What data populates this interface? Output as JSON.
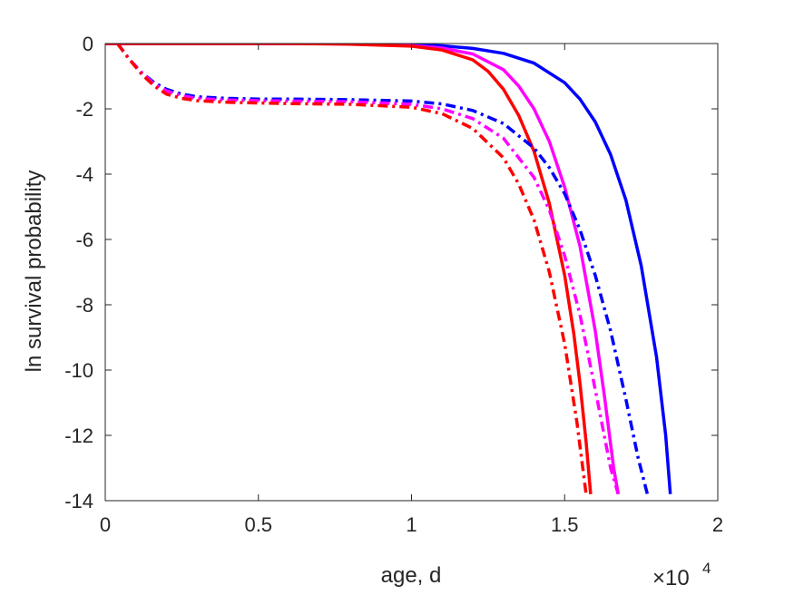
{
  "chart_data": {
    "type": "line",
    "title": "",
    "xlabel": "age, d",
    "ylabel": "ln survival probability",
    "x_multiplier": {
      "base": "×10",
      "exponent": "4"
    },
    "xlim": [
      0,
      2
    ],
    "ylim": [
      -14,
      0
    ],
    "xticks": [
      "0",
      "0.5",
      "1",
      "1.5",
      "2"
    ],
    "yticks": [
      "0",
      "-2",
      "-4",
      "-6",
      "-8",
      "-10",
      "-12",
      "-14"
    ],
    "grid": false,
    "legend": "none",
    "series": [
      {
        "color": "#0000ff",
        "style": "solid",
        "x": [
          0,
          0.2,
          0.4,
          0.6,
          0.8,
          1.0,
          1.1,
          1.2,
          1.3,
          1.4,
          1.5,
          1.55,
          1.6,
          1.65,
          1.7,
          1.75,
          1.8,
          1.83,
          1.845
        ],
        "y": [
          0,
          0,
          0,
          0,
          -0.01,
          -0.04,
          -0.07,
          -0.15,
          -0.3,
          -0.6,
          -1.2,
          -1.7,
          -2.4,
          -3.4,
          -4.8,
          -6.8,
          -9.6,
          -12.0,
          -13.8
        ]
      },
      {
        "color": "#ff00ff",
        "style": "solid",
        "x": [
          0,
          0.2,
          0.4,
          0.6,
          0.8,
          1.0,
          1.1,
          1.2,
          1.3,
          1.35,
          1.4,
          1.45,
          1.5,
          1.55,
          1.6,
          1.63,
          1.66,
          1.675
        ],
        "y": [
          0,
          0,
          0,
          0,
          -0.01,
          -0.06,
          -0.14,
          -0.32,
          -0.8,
          -1.3,
          -2.0,
          -3.0,
          -4.4,
          -6.2,
          -8.8,
          -10.8,
          -13.0,
          -13.8
        ]
      },
      {
        "color": "#ff0000",
        "style": "solid",
        "x": [
          0,
          0.2,
          0.4,
          0.6,
          0.8,
          1.0,
          1.1,
          1.2,
          1.25,
          1.3,
          1.35,
          1.4,
          1.45,
          1.5,
          1.53,
          1.55,
          1.57,
          1.585
        ],
        "y": [
          0,
          0,
          0,
          0,
          -0.02,
          -0.08,
          -0.2,
          -0.5,
          -0.85,
          -1.4,
          -2.2,
          -3.3,
          -4.9,
          -7.1,
          -8.9,
          -10.4,
          -12.2,
          -13.8
        ]
      },
      {
        "color": "#0000ff",
        "style": "dashdot",
        "x": [
          0.04,
          0.08,
          0.12,
          0.16,
          0.2,
          0.25,
          0.3,
          0.4,
          0.5,
          0.6,
          0.8,
          1.0,
          1.1,
          1.2,
          1.3,
          1.4,
          1.45,
          1.5,
          1.55,
          1.6,
          1.65,
          1.7,
          1.74,
          1.77
        ],
        "y": [
          0,
          -0.5,
          -0.9,
          -1.2,
          -1.4,
          -1.55,
          -1.63,
          -1.68,
          -1.7,
          -1.7,
          -1.72,
          -1.76,
          -1.85,
          -2.05,
          -2.45,
          -3.2,
          -3.8,
          -4.6,
          -5.7,
          -7.1,
          -8.8,
          -10.9,
          -12.7,
          -13.8
        ]
      },
      {
        "color": "#ff00ff",
        "style": "dashdot",
        "x": [
          0.04,
          0.08,
          0.12,
          0.16,
          0.2,
          0.25,
          0.3,
          0.4,
          0.5,
          0.6,
          0.8,
          1.0,
          1.1,
          1.2,
          1.3,
          1.4,
          1.45,
          1.5,
          1.55,
          1.6,
          1.65,
          1.675
        ],
        "y": [
          0,
          -0.5,
          -0.9,
          -1.25,
          -1.45,
          -1.6,
          -1.68,
          -1.73,
          -1.75,
          -1.76,
          -1.78,
          -1.86,
          -2.0,
          -2.3,
          -2.9,
          -4.1,
          -5.1,
          -6.5,
          -8.3,
          -10.6,
          -13.0,
          -13.8
        ]
      },
      {
        "color": "#ff0000",
        "style": "dashdot",
        "x": [
          0.04,
          0.08,
          0.12,
          0.16,
          0.2,
          0.25,
          0.3,
          0.4,
          0.5,
          0.6,
          0.8,
          1.0,
          1.1,
          1.2,
          1.3,
          1.35,
          1.4,
          1.45,
          1.5,
          1.54,
          1.57
        ],
        "y": [
          0,
          -0.5,
          -0.95,
          -1.3,
          -1.55,
          -1.68,
          -1.75,
          -1.8,
          -1.82,
          -1.84,
          -1.86,
          -1.95,
          -2.15,
          -2.6,
          -3.5,
          -4.3,
          -5.4,
          -7.0,
          -9.2,
          -11.6,
          -13.8
        ]
      }
    ]
  }
}
